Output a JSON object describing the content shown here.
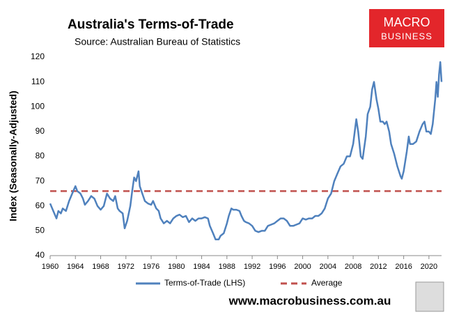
{
  "chart_data": {
    "type": "line",
    "title": "Australia's Terms-of-Trade",
    "subtitle": "Source: Australian Bureau of Statistics",
    "y_label": "Index (Seasonally-Adjusted)",
    "logo": [
      "MACRO",
      "BUSINESS"
    ],
    "footer": "www.macrobusiness.com.au",
    "xlim": [
      1960,
      2022
    ],
    "xticks": [
      1960,
      1964,
      1968,
      1972,
      1976,
      1980,
      1984,
      1988,
      1992,
      1996,
      2000,
      2004,
      2008,
      2012,
      2016,
      2020
    ],
    "ylim": [
      40,
      120
    ],
    "yticks": [
      40,
      50,
      60,
      70,
      80,
      90,
      100,
      110,
      120
    ],
    "x": [
      1960,
      1960.5,
      1961,
      1961.3,
      1961.7,
      1962,
      1962.5,
      1963,
      1963.5,
      1964,
      1964.3,
      1964.8,
      1965.2,
      1965.5,
      1966,
      1966.5,
      1967,
      1967.5,
      1968,
      1968.5,
      1969,
      1969.5,
      1970,
      1970.3,
      1970.7,
      1971,
      1971.5,
      1971.8,
      1972.2,
      1972.7,
      1973,
      1973.3,
      1973.6,
      1974,
      1974.2,
      1974.6,
      1975,
      1975.5,
      1976,
      1976.3,
      1976.8,
      1977.2,
      1977.5,
      1978,
      1978.5,
      1979,
      1979.5,
      1980,
      1980.5,
      1981,
      1981.5,
      1982,
      1982.5,
      1983,
      1983.5,
      1984,
      1984.5,
      1985,
      1985.3,
      1985.8,
      1986.2,
      1986.7,
      1987,
      1987.5,
      1988,
      1988.3,
      1988.7,
      1989,
      1989.5,
      1990,
      1990.3,
      1990.7,
      1991,
      1991.5,
      1992,
      1992.5,
      1993,
      1993.5,
      1994,
      1994.5,
      1995,
      1995.5,
      1996,
      1996.5,
      1997,
      1997.5,
      1998,
      1998.5,
      1999,
      1999.5,
      2000,
      2000.5,
      2001,
      2001.5,
      2002,
      2002.5,
      2003,
      2003.5,
      2004,
      2004.5,
      2005,
      2005.5,
      2006,
      2006.5,
      2007,
      2007.5,
      2008,
      2008.5,
      2008.8,
      2009.2,
      2009.5,
      2010,
      2010.3,
      2010.7,
      2011,
      2011.3,
      2011.7,
      2012,
      2012.3,
      2012.7,
      2013,
      2013.3,
      2013.7,
      2014,
      2014.5,
      2015,
      2015.5,
      2015.7,
      2016,
      2016.5,
      2016.8,
      2017,
      2017.5,
      2018,
      2018.5,
      2019,
      2019.3,
      2019.6,
      2020,
      2020.3,
      2020.6,
      2021,
      2021.2,
      2021.4,
      2021.6,
      2021.8,
      2022
    ],
    "series": [
      {
        "name": "Terms-of-Trade (LHS)",
        "color": "#4f81bd",
        "values": [
          61,
          58,
          55,
          58,
          57,
          59,
          58,
          62,
          65,
          68,
          66,
          65,
          63,
          60.5,
          62,
          64,
          63,
          60,
          58.5,
          60,
          65,
          63,
          62,
          64,
          59,
          58,
          57,
          51,
          54,
          60,
          66,
          71.5,
          70,
          74,
          68,
          65,
          62,
          61,
          60.5,
          62,
          59,
          58,
          55,
          53,
          54,
          53,
          55,
          56,
          56.5,
          55.5,
          56,
          53.5,
          55,
          54,
          55,
          55,
          55.5,
          55,
          52,
          49,
          46.5,
          46.5,
          48,
          49,
          53,
          56,
          59,
          58.5,
          58.5,
          58,
          56,
          54,
          53.5,
          53,
          52,
          50,
          49.5,
          50,
          50,
          52,
          52.5,
          53,
          54,
          55,
          55,
          54,
          52,
          52,
          52.5,
          53,
          55,
          54.5,
          55,
          55,
          56,
          56,
          57,
          59,
          63,
          65,
          70,
          73,
          76,
          77,
          80,
          80,
          85,
          95,
          90,
          80,
          79,
          88,
          97,
          100,
          107,
          110,
          103,
          99,
          94,
          94,
          93,
          94,
          90,
          85,
          81,
          76,
          72,
          71,
          74,
          82,
          88,
          85,
          85,
          86,
          90,
          93,
          94,
          90,
          90,
          89,
          93,
          103,
          110,
          104,
          113,
          118,
          110
        ]
      }
    ],
    "reference_lines": [
      {
        "name": "Average",
        "value": 66,
        "color": "#c0504d"
      }
    ]
  }
}
